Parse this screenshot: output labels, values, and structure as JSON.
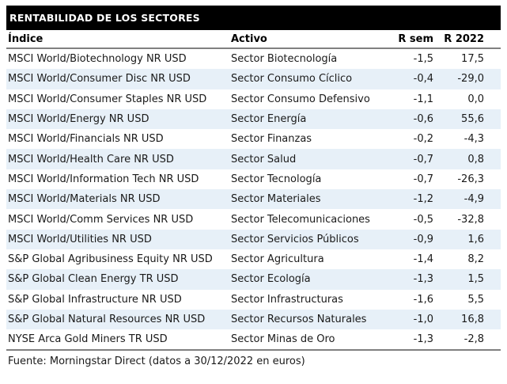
{
  "title_bar": {
    "title": "RENTABILIDAD DE LOS SECTORES"
  },
  "table": {
    "columns": [
      "Índice",
      "Activo",
      "R sem",
      "R 2022"
    ],
    "rows": [
      {
        "indice": "MSCI World/Biotechnology NR USD",
        "activo": "Sector Biotecnología",
        "r_sem": "-1,5",
        "r_2022": "17,5"
      },
      {
        "indice": "MSCI World/Consumer Disc NR USD",
        "activo": "Sector Consumo Cíclico",
        "r_sem": "-0,4",
        "r_2022": "-29,0"
      },
      {
        "indice": "MSCI World/Consumer Staples NR USD",
        "activo": "Sector Consumo Defensivo",
        "r_sem": "-1,1",
        "r_2022": "0,0"
      },
      {
        "indice": "MSCI World/Energy NR USD",
        "activo": "Sector Energía",
        "r_sem": "-0,6",
        "r_2022": "55,6"
      },
      {
        "indice": "MSCI World/Financials NR USD",
        "activo": "Sector Finanzas",
        "r_sem": "-0,2",
        "r_2022": "-4,3"
      },
      {
        "indice": "MSCI World/Health Care NR USD",
        "activo": "Sector Salud",
        "r_sem": "-0,7",
        "r_2022": "0,8"
      },
      {
        "indice": "MSCI World/Information Tech NR USD",
        "activo": "Sector Tecnología",
        "r_sem": "-0,7",
        "r_2022": "-26,3"
      },
      {
        "indice": "MSCI World/Materials NR USD",
        "activo": "Sector Materiales",
        "r_sem": "-1,2",
        "r_2022": "-4,9"
      },
      {
        "indice": "MSCI World/Comm Services NR USD",
        "activo": "Sector Telecomunicaciones",
        "r_sem": "-0,5",
        "r_2022": "-32,8"
      },
      {
        "indice": "MSCI World/Utilities NR USD",
        "activo": "Sector Servicios Públicos",
        "r_sem": "-0,9",
        "r_2022": "1,6"
      },
      {
        "indice": "S&P Global Agribusiness Equity NR USD",
        "activo": "Sector Agricultura",
        "r_sem": "-1,4",
        "r_2022": "8,2"
      },
      {
        "indice": "S&P Global Clean Energy TR USD",
        "activo": "Sector Ecología",
        "r_sem": "-1,3",
        "r_2022": "1,5"
      },
      {
        "indice": "S&P Global Infrastructure NR USD",
        "activo": "Sector Infrastructuras",
        "r_sem": "-1,6",
        "r_2022": "5,5"
      },
      {
        "indice": "S&P Global Natural Resources NR USD",
        "activo": "Sector Recursos Naturales",
        "r_sem": "-1,0",
        "r_2022": "16,8"
      },
      {
        "indice": "NYSE Arca Gold Miners TR USD",
        "activo": "Sector Minas de Oro",
        "r_sem": "-1,3",
        "r_2022": "-2,8"
      }
    ]
  },
  "footer": {
    "source": "Fuente: Morningstar Direct (datos a 30/12/2022 en euros)"
  },
  "colors": {
    "title_bg": "#000000",
    "title_text": "#ffffff",
    "stripe": "#e7f0f8",
    "rule": "#808080",
    "text": "#1a1a1a"
  }
}
